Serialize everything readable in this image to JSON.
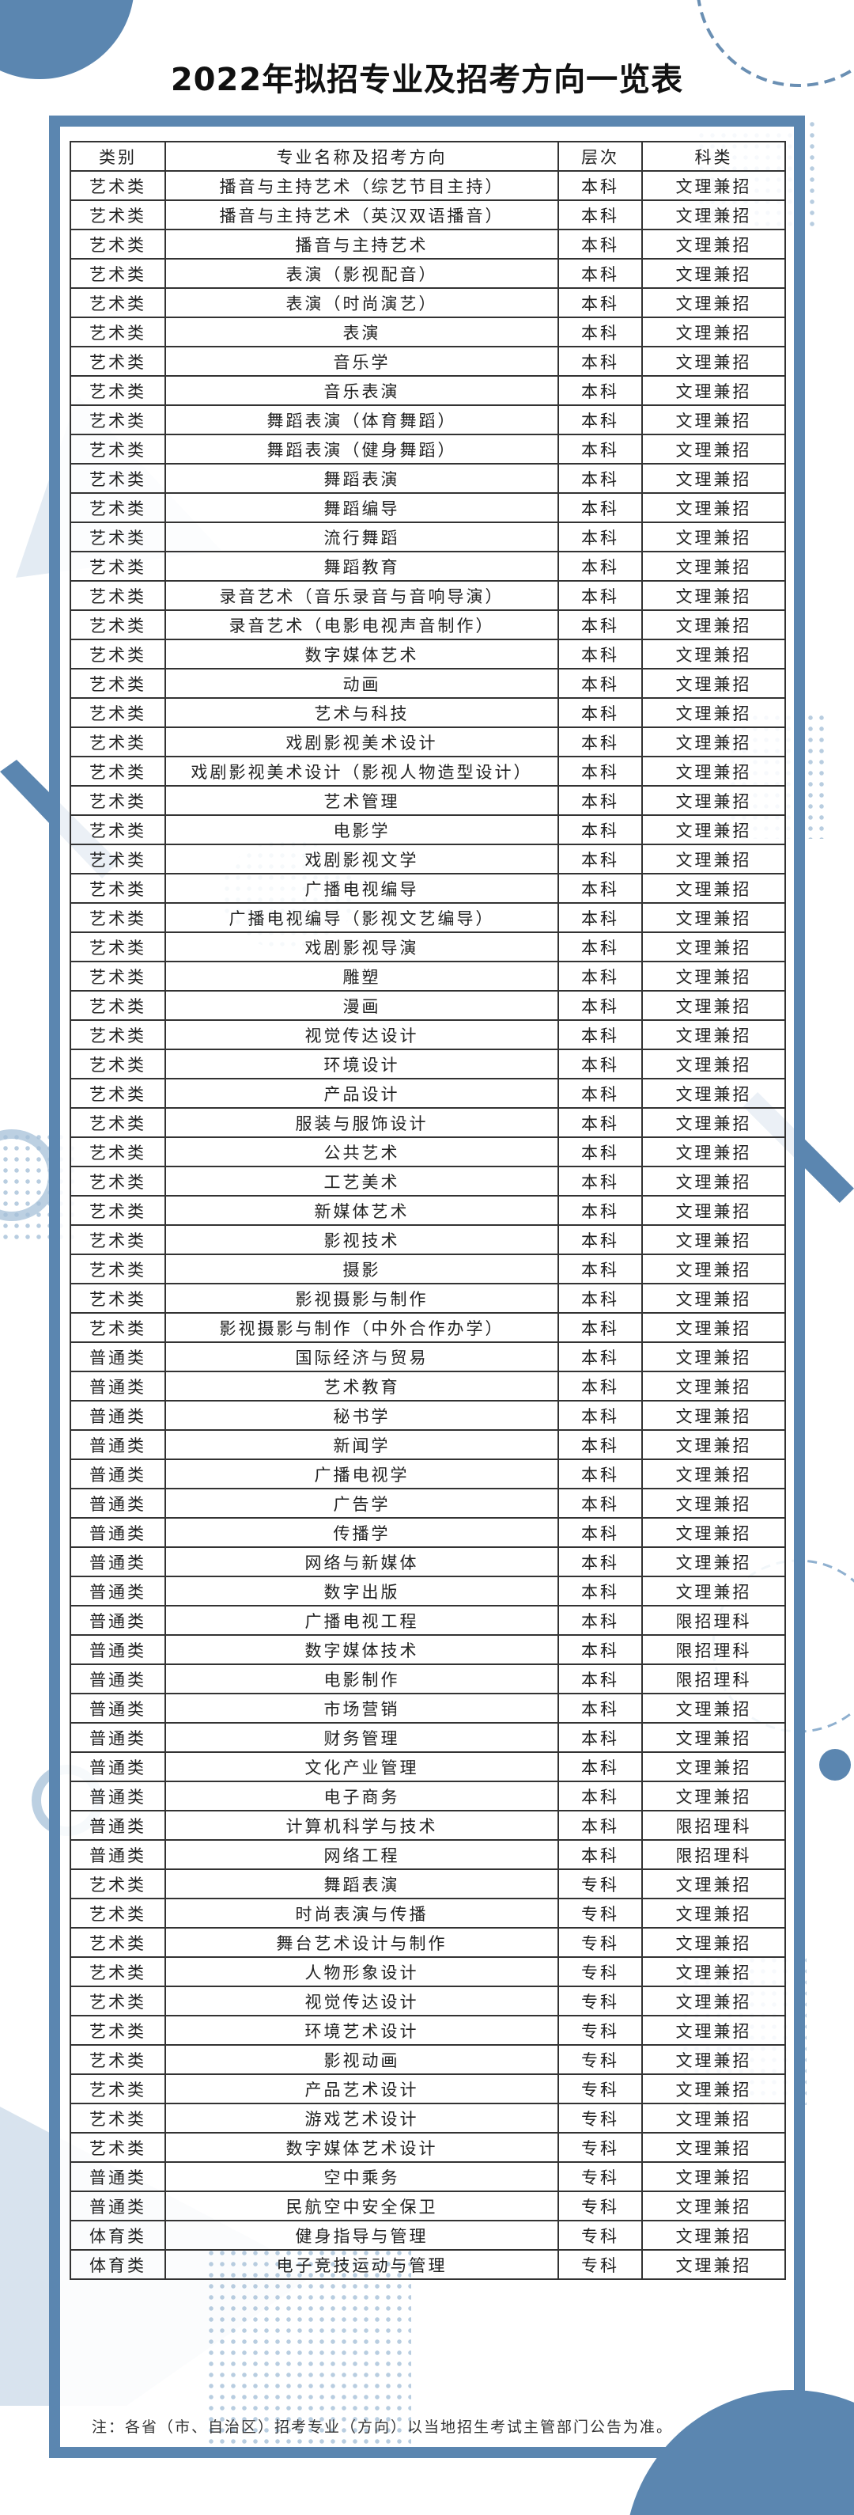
{
  "title": "2022年拟招专业及招考方向一览表",
  "table": {
    "headers": [
      "类别",
      "专业名称及招考方向",
      "层次",
      "科类"
    ],
    "rows": [
      [
        "艺术类",
        "播音与主持艺术（综艺节目主持）",
        "本科",
        "文理兼招"
      ],
      [
        "艺术类",
        "播音与主持艺术（英汉双语播音）",
        "本科",
        "文理兼招"
      ],
      [
        "艺术类",
        "播音与主持艺术",
        "本科",
        "文理兼招"
      ],
      [
        "艺术类",
        "表演（影视配音）",
        "本科",
        "文理兼招"
      ],
      [
        "艺术类",
        "表演（时尚演艺）",
        "本科",
        "文理兼招"
      ],
      [
        "艺术类",
        "表演",
        "本科",
        "文理兼招"
      ],
      [
        "艺术类",
        "音乐学",
        "本科",
        "文理兼招"
      ],
      [
        "艺术类",
        "音乐表演",
        "本科",
        "文理兼招"
      ],
      [
        "艺术类",
        "舞蹈表演（体育舞蹈）",
        "本科",
        "文理兼招"
      ],
      [
        "艺术类",
        "舞蹈表演（健身舞蹈）",
        "本科",
        "文理兼招"
      ],
      [
        "艺术类",
        "舞蹈表演",
        "本科",
        "文理兼招"
      ],
      [
        "艺术类",
        "舞蹈编导",
        "本科",
        "文理兼招"
      ],
      [
        "艺术类",
        "流行舞蹈",
        "本科",
        "文理兼招"
      ],
      [
        "艺术类",
        "舞蹈教育",
        "本科",
        "文理兼招"
      ],
      [
        "艺术类",
        "录音艺术（音乐录音与音响导演）",
        "本科",
        "文理兼招"
      ],
      [
        "艺术类",
        "录音艺术（电影电视声音制作）",
        "本科",
        "文理兼招"
      ],
      [
        "艺术类",
        "数字媒体艺术",
        "本科",
        "文理兼招"
      ],
      [
        "艺术类",
        "动画",
        "本科",
        "文理兼招"
      ],
      [
        "艺术类",
        "艺术与科技",
        "本科",
        "文理兼招"
      ],
      [
        "艺术类",
        "戏剧影视美术设计",
        "本科",
        "文理兼招"
      ],
      [
        "艺术类",
        "戏剧影视美术设计（影视人物造型设计）",
        "本科",
        "文理兼招"
      ],
      [
        "艺术类",
        "艺术管理",
        "本科",
        "文理兼招"
      ],
      [
        "艺术类",
        "电影学",
        "本科",
        "文理兼招"
      ],
      [
        "艺术类",
        "戏剧影视文学",
        "本科",
        "文理兼招"
      ],
      [
        "艺术类",
        "广播电视编导",
        "本科",
        "文理兼招"
      ],
      [
        "艺术类",
        "广播电视编导（影视文艺编导）",
        "本科",
        "文理兼招"
      ],
      [
        "艺术类",
        "戏剧影视导演",
        "本科",
        "文理兼招"
      ],
      [
        "艺术类",
        "雕塑",
        "本科",
        "文理兼招"
      ],
      [
        "艺术类",
        "漫画",
        "本科",
        "文理兼招"
      ],
      [
        "艺术类",
        "视觉传达设计",
        "本科",
        "文理兼招"
      ],
      [
        "艺术类",
        "环境设计",
        "本科",
        "文理兼招"
      ],
      [
        "艺术类",
        "产品设计",
        "本科",
        "文理兼招"
      ],
      [
        "艺术类",
        "服装与服饰设计",
        "本科",
        "文理兼招"
      ],
      [
        "艺术类",
        "公共艺术",
        "本科",
        "文理兼招"
      ],
      [
        "艺术类",
        "工艺美术",
        "本科",
        "文理兼招"
      ],
      [
        "艺术类",
        "新媒体艺术",
        "本科",
        "文理兼招"
      ],
      [
        "艺术类",
        "影视技术",
        "本科",
        "文理兼招"
      ],
      [
        "艺术类",
        "摄影",
        "本科",
        "文理兼招"
      ],
      [
        "艺术类",
        "影视摄影与制作",
        "本科",
        "文理兼招"
      ],
      [
        "艺术类",
        "影视摄影与制作（中外合作办学）",
        "本科",
        "文理兼招"
      ],
      [
        "普通类",
        "国际经济与贸易",
        "本科",
        "文理兼招"
      ],
      [
        "普通类",
        "艺术教育",
        "本科",
        "文理兼招"
      ],
      [
        "普通类",
        "秘书学",
        "本科",
        "文理兼招"
      ],
      [
        "普通类",
        "新闻学",
        "本科",
        "文理兼招"
      ],
      [
        "普通类",
        "广播电视学",
        "本科",
        "文理兼招"
      ],
      [
        "普通类",
        "广告学",
        "本科",
        "文理兼招"
      ],
      [
        "普通类",
        "传播学",
        "本科",
        "文理兼招"
      ],
      [
        "普通类",
        "网络与新媒体",
        "本科",
        "文理兼招"
      ],
      [
        "普通类",
        "数字出版",
        "本科",
        "文理兼招"
      ],
      [
        "普通类",
        "广播电视工程",
        "本科",
        "限招理科"
      ],
      [
        "普通类",
        "数字媒体技术",
        "本科",
        "限招理科"
      ],
      [
        "普通类",
        "电影制作",
        "本科",
        "限招理科"
      ],
      [
        "普通类",
        "市场营销",
        "本科",
        "文理兼招"
      ],
      [
        "普通类",
        "财务管理",
        "本科",
        "文理兼招"
      ],
      [
        "普通类",
        "文化产业管理",
        "本科",
        "文理兼招"
      ],
      [
        "普通类",
        "电子商务",
        "本科",
        "文理兼招"
      ],
      [
        "普通类",
        "计算机科学与技术",
        "本科",
        "限招理科"
      ],
      [
        "普通类",
        "网络工程",
        "本科",
        "限招理科"
      ],
      [
        "艺术类",
        "舞蹈表演",
        "专科",
        "文理兼招"
      ],
      [
        "艺术类",
        "时尚表演与传播",
        "专科",
        "文理兼招"
      ],
      [
        "艺术类",
        "舞台艺术设计与制作",
        "专科",
        "文理兼招"
      ],
      [
        "艺术类",
        "人物形象设计",
        "专科",
        "文理兼招"
      ],
      [
        "艺术类",
        "视觉传达设计",
        "专科",
        "文理兼招"
      ],
      [
        "艺术类",
        "环境艺术设计",
        "专科",
        "文理兼招"
      ],
      [
        "艺术类",
        "影视动画",
        "专科",
        "文理兼招"
      ],
      [
        "艺术类",
        "产品艺术设计",
        "专科",
        "文理兼招"
      ],
      [
        "艺术类",
        "游戏艺术设计",
        "专科",
        "文理兼招"
      ],
      [
        "艺术类",
        "数字媒体艺术设计",
        "专科",
        "文理兼招"
      ],
      [
        "普通类",
        "空中乘务",
        "专科",
        "文理兼招"
      ],
      [
        "普通类",
        "民航空中安全保卫",
        "专科",
        "文理兼招"
      ],
      [
        "体育类",
        "健身指导与管理",
        "专科",
        "文理兼招"
      ],
      [
        "体育类",
        "电子竞技运动与管理",
        "专科",
        "文理兼招"
      ]
    ]
  },
  "note": "注：各省（市、自治区）招考专业（方向）以当地招生考试主管部门公告为准。",
  "colors": {
    "accent": "#5b86b0",
    "accent_light": "#a6c0d8"
  }
}
